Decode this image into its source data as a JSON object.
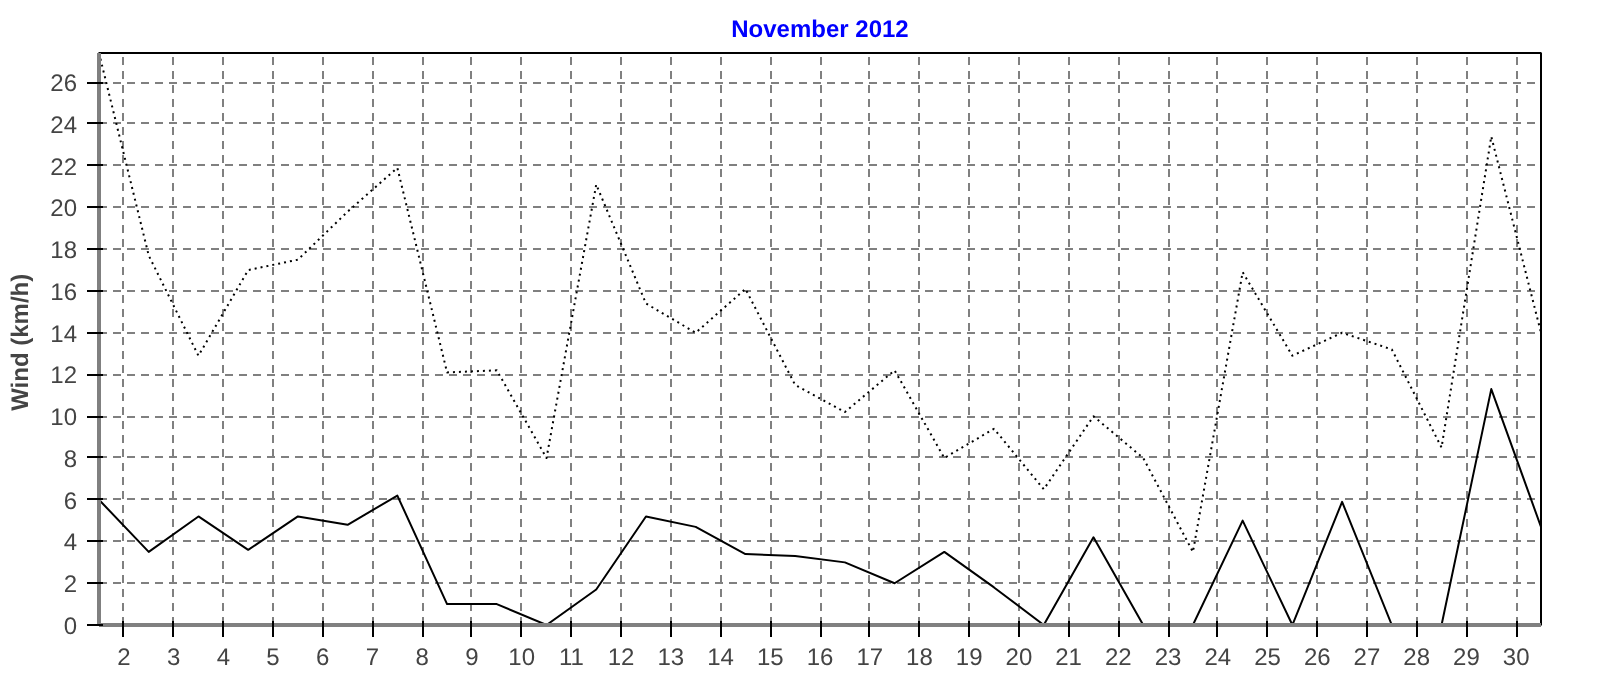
{
  "chart_data": {
    "type": "line",
    "title": "November 2012",
    "ylabel": "Wind  (km/h)",
    "x": [
      1.5,
      2.5,
      3.5,
      4.5,
      5.5,
      6.5,
      7.5,
      8.5,
      9.5,
      10.5,
      11.5,
      12.5,
      13.5,
      14.5,
      15.5,
      16.5,
      17.5,
      18.5,
      19.5,
      20.5,
      21.5,
      22.5,
      23.5,
      24.5,
      25.5,
      26.5,
      27.5,
      28.5,
      29.5,
      30.5
    ],
    "series": [
      {
        "color": "#000000",
        "line_style": "dotted",
        "values": [
          27.4,
          17.7,
          12.9,
          17.0,
          17.5,
          19.8,
          21.9,
          12.1,
          12.2,
          8.0,
          21.1,
          15.4,
          14.0,
          16.1,
          11.5,
          10.2,
          12.2,
          8.0,
          9.4,
          6.5,
          10.0,
          8.0,
          3.5,
          16.9,
          12.9,
          14.0,
          13.2,
          8.5,
          23.4,
          14.0
        ]
      },
      {
        "color": "#000000",
        "line_style": "solid",
        "values": [
          6.0,
          3.5,
          5.2,
          3.6,
          5.2,
          4.8,
          6.2,
          1.0,
          1.0,
          0.0,
          1.7,
          5.2,
          4.7,
          3.4,
          3.3,
          3.0,
          2.0,
          3.5,
          1.8,
          0.0,
          4.2,
          0.0,
          0.0,
          5.0,
          0.0,
          5.9,
          0.0,
          0.0,
          11.3,
          4.7
        ]
      }
    ],
    "xlim": [
      1.5,
      30.5
    ],
    "xticks": [
      2,
      3,
      4,
      5,
      6,
      7,
      8,
      9,
      10,
      11,
      12,
      13,
      14,
      15,
      16,
      17,
      18,
      19,
      20,
      21,
      22,
      23,
      24,
      25,
      26,
      27,
      28,
      29,
      30
    ],
    "ylim": [
      0,
      27.4
    ],
    "yticks": [
      0,
      2,
      4,
      6,
      8,
      10,
      12,
      14,
      16,
      18,
      20,
      22,
      24,
      26
    ],
    "grid": true
  }
}
